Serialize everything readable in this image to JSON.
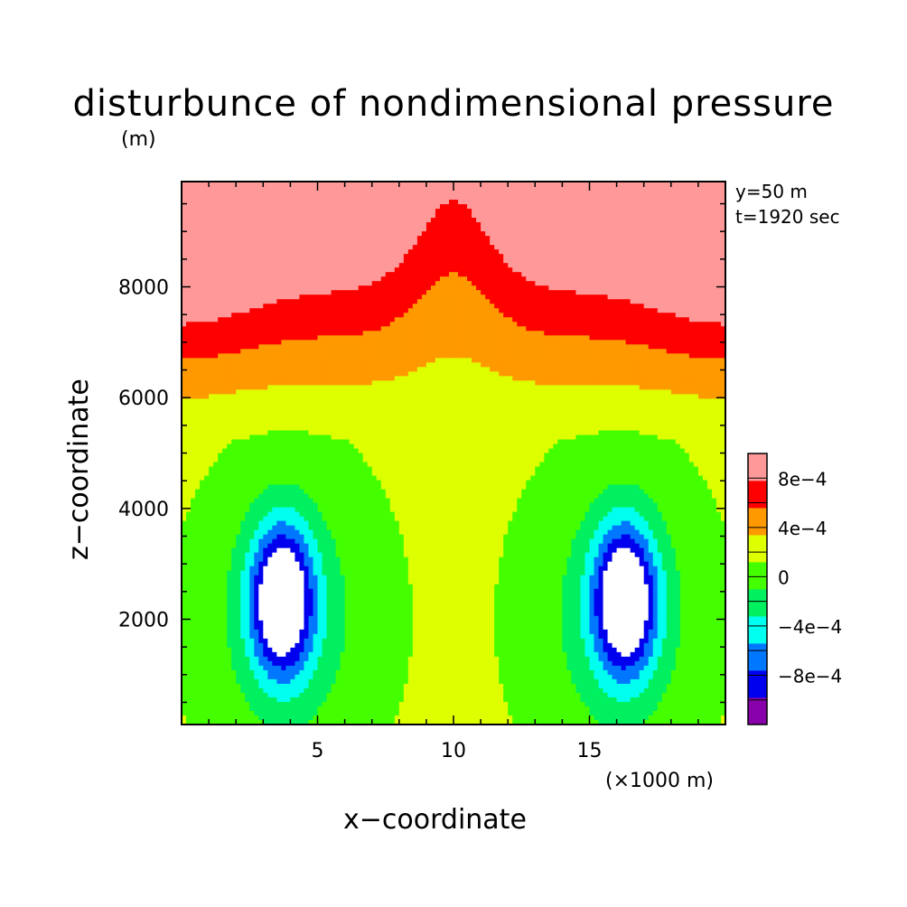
{
  "chart_data": {
    "type": "heatmap",
    "title": "disturbunce of nondimensional pressure",
    "xlabel": "x−coordinate",
    "ylabel": "z−coordinate",
    "yunit": "(m)",
    "xunit": "(×1000 m)",
    "annotations": [
      "y=50 m",
      "t=1920 sec"
    ],
    "xlim": [
      0,
      20
    ],
    "ylim": [
      100,
      9900
    ],
    "x_ticks": [
      5,
      10,
      15
    ],
    "x_tick_labels": [
      "5",
      "10",
      "15"
    ],
    "y_ticks": [
      2000,
      4000,
      6000,
      8000
    ],
    "y_tick_labels": [
      "2000",
      "4000",
      "6000",
      "8000"
    ],
    "colorbar": {
      "levels": [
        -0.0012,
        -0.001,
        -0.0008,
        -0.0006,
        -0.0004,
        -0.0002,
        0,
        0.0002,
        0.0004,
        0.0006,
        0.0008,
        0.001
      ],
      "colors": [
        "#8800aa",
        "#0000ee",
        "#0077ff",
        "#00ffee",
        "#00f060",
        "#44ff00",
        "#ddff00",
        "#ff9900",
        "#ff0000",
        "#ff9999"
      ],
      "labels": [
        {
          "value": -0.0008,
          "text": "−8e−4"
        },
        {
          "value": -0.0004,
          "text": "−4e−4"
        },
        {
          "value": 0,
          "text": "0"
        },
        {
          "value": 0.0004,
          "text": "4e−4"
        },
        {
          "value": 0.0008,
          "text": "8e−4"
        }
      ]
    },
    "minimum_centers": [
      {
        "x": 3.7,
        "z": 2300
      },
      {
        "x": 16.3,
        "z": 2300
      }
    ]
  }
}
